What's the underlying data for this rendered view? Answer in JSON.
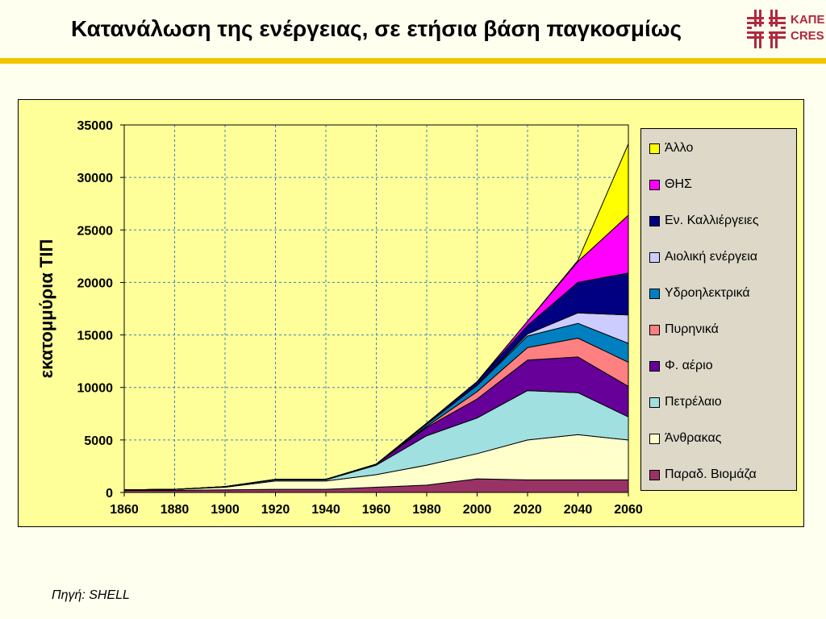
{
  "slide": {
    "title": "Κατανάλωση της ενέργειας, σε ετήσια βάση παγκοσμίως",
    "source": "Πηγή: SHELL",
    "logo_line1": "ΚΑΠΕ",
    "logo_line2": "CRES"
  },
  "colors": {
    "accent_rule": "#f5c400",
    "plot_background": "#ffff99",
    "legend_background": "#ddd8c8",
    "logo": "#b0283c"
  },
  "chart_data": {
    "type": "area",
    "stacked": true,
    "title": "",
    "xlabel": "",
    "ylabel": "εκατομμύρια ΤΙΠ",
    "x": [
      1860,
      1880,
      1900,
      1920,
      1940,
      1960,
      1980,
      2000,
      2020,
      2040,
      2060
    ],
    "xlim": [
      1860,
      2060
    ],
    "ylim": [
      0,
      35000
    ],
    "x_ticks": [
      1860,
      1880,
      1900,
      1920,
      1940,
      1960,
      1980,
      2000,
      2020,
      2040,
      2060
    ],
    "y_ticks": [
      0,
      5000,
      10000,
      15000,
      20000,
      25000,
      30000,
      35000
    ],
    "grid": true,
    "legend_position": "right",
    "series": [
      {
        "name": "Παραδ. Βιομάζα",
        "color": "#993366",
        "values": [
          200,
          200,
          250,
          300,
          300,
          500,
          700,
          1300,
          1200,
          1200,
          1200
        ]
      },
      {
        "name": "Άνθρακας",
        "color": "#ffffcc",
        "values": [
          50,
          100,
          250,
          800,
          800,
          1200,
          1900,
          2400,
          3800,
          4300,
          3800
        ]
      },
      {
        "name": "Πετρέλαιο",
        "color": "#a0e0e0",
        "values": [
          0,
          0,
          50,
          100,
          100,
          900,
          2800,
          3400,
          4700,
          4000,
          2200
        ]
      },
      {
        "name": "Φ. αέριο",
        "color": "#660099",
        "values": [
          0,
          0,
          0,
          50,
          50,
          100,
          800,
          1800,
          2900,
          3400,
          2900
        ]
      },
      {
        "name": "Πυρηνικά",
        "color": "#ff8080",
        "values": [
          0,
          0,
          0,
          0,
          0,
          0,
          100,
          700,
          1200,
          1800,
          2300
        ]
      },
      {
        "name": "Υδροηλεκτρικά",
        "color": "#0080c0",
        "values": [
          0,
          0,
          0,
          0,
          0,
          0,
          200,
          600,
          1100,
          1400,
          1800
        ]
      },
      {
        "name": "Αιολική ενέργεια",
        "color": "#ccccff",
        "values": [
          0,
          0,
          0,
          0,
          0,
          0,
          0,
          50,
          200,
          1000,
          2700
        ]
      },
      {
        "name": "Εν. Καλλιέργειες",
        "color": "#000080",
        "values": [
          0,
          0,
          0,
          0,
          0,
          0,
          100,
          300,
          800,
          2900,
          4000
        ]
      },
      {
        "name": "ΘΗΣ",
        "color": "#ff00ff",
        "values": [
          0,
          0,
          0,
          0,
          0,
          0,
          0,
          0,
          400,
          2000,
          5500
        ]
      },
      {
        "name": "Άλλο",
        "color": "#ffff00",
        "values": [
          0,
          0,
          0,
          0,
          0,
          0,
          0,
          0,
          0,
          100,
          6800
        ]
      }
    ]
  }
}
